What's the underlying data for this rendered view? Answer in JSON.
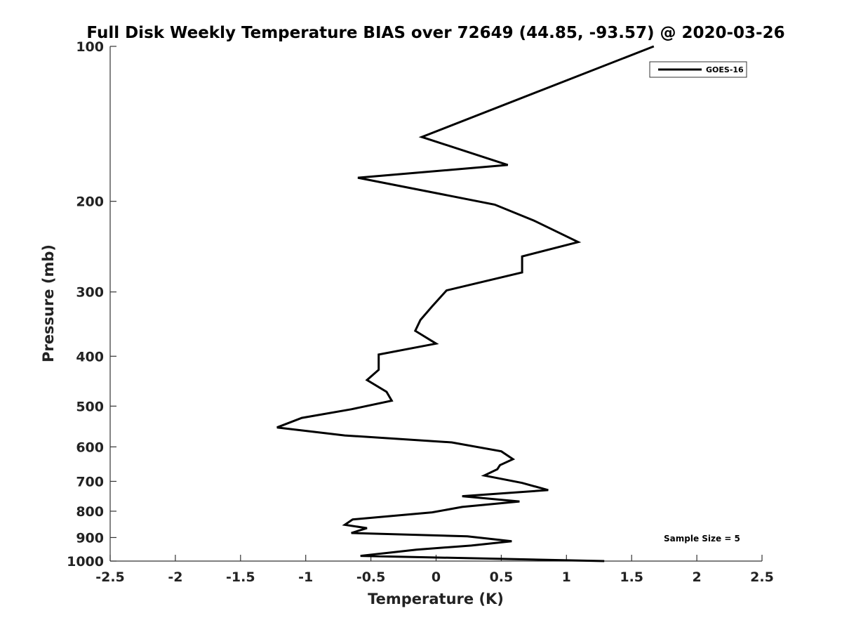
{
  "chart_data": {
    "type": "line",
    "title": "Full Disk Weekly Temperature BIAS over 72649 (44.85, -93.57) @ 2020-03-26",
    "xlabel": "Temperature (K)",
    "ylabel": "Pressure (mb)",
    "xlim": [
      -2.5,
      2.5
    ],
    "ylim": [
      100,
      1000
    ],
    "y_scale": "log",
    "y_reversed": true,
    "x_ticks": [
      "-2.5",
      "-2",
      "-1.5",
      "-1",
      "-0.5",
      "0",
      "0.5",
      "1",
      "1.5",
      "2",
      "2.5"
    ],
    "y_ticks": [
      "100",
      "200",
      "300",
      "400",
      "500",
      "600",
      "700",
      "800",
      "900",
      "1000"
    ],
    "grid": false,
    "legend": {
      "position": "top-right",
      "entries": [
        "GOES-16"
      ]
    },
    "annotation": "Sample Size = 5",
    "series": [
      {
        "name": "GOES-16",
        "color": "#000000",
        "points": [
          [
            1.67,
            100
          ],
          [
            -0.11,
            150
          ],
          [
            0.55,
            170
          ],
          [
            -0.6,
            180
          ],
          [
            0.45,
            203
          ],
          [
            0.75,
            218
          ],
          [
            1.09,
            240
          ],
          [
            0.66,
            256
          ],
          [
            0.66,
            275
          ],
          [
            0.08,
            298
          ],
          [
            -0.03,
            320
          ],
          [
            -0.12,
            340
          ],
          [
            -0.16,
            357
          ],
          [
            0.0,
            378
          ],
          [
            -0.44,
            397
          ],
          [
            -0.44,
            425
          ],
          [
            -0.53,
            445
          ],
          [
            -0.38,
            469
          ],
          [
            -0.34,
            488
          ],
          [
            -0.65,
            507
          ],
          [
            -1.03,
            527
          ],
          [
            -1.22,
            550
          ],
          [
            -0.7,
            570
          ],
          [
            0.12,
            588
          ],
          [
            0.5,
            612
          ],
          [
            0.59,
            634
          ],
          [
            0.49,
            651
          ],
          [
            0.47,
            663
          ],
          [
            0.37,
            682
          ],
          [
            0.66,
            705
          ],
          [
            0.86,
            728
          ],
          [
            0.2,
            748
          ],
          [
            0.64,
            766
          ],
          [
            0.2,
            785
          ],
          [
            -0.03,
            804
          ],
          [
            -0.64,
            830
          ],
          [
            -0.7,
            850
          ],
          [
            -0.53,
            863
          ],
          [
            -0.65,
            882
          ],
          [
            0.24,
            895
          ],
          [
            0.58,
            915
          ],
          [
            0.27,
            933
          ],
          [
            -0.15,
            950
          ],
          [
            -0.58,
            977
          ],
          [
            1.29,
            1000
          ]
        ]
      }
    ]
  }
}
